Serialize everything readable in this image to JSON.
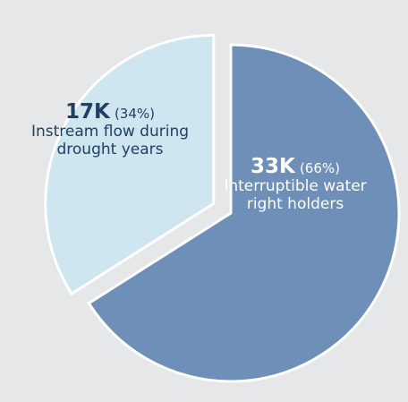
{
  "chart_data": {
    "type": "pie",
    "slices": [
      {
        "value_text": "17K",
        "value": 17000,
        "percent_text": "(34%)",
        "percent": 34,
        "label": "Instream flow during drought years",
        "color": "#cfe6f0",
        "explode": true
      },
      {
        "value_text": "33K",
        "value": 33000,
        "percent_text": "(66%)",
        "percent": 66,
        "label": "Interruptible water right holders",
        "color": "#6e8fb7",
        "explode": false
      }
    ],
    "title": "",
    "legend": "none"
  },
  "colors": {
    "background": "#e6e7e8",
    "slice_border": "#ffffff"
  }
}
